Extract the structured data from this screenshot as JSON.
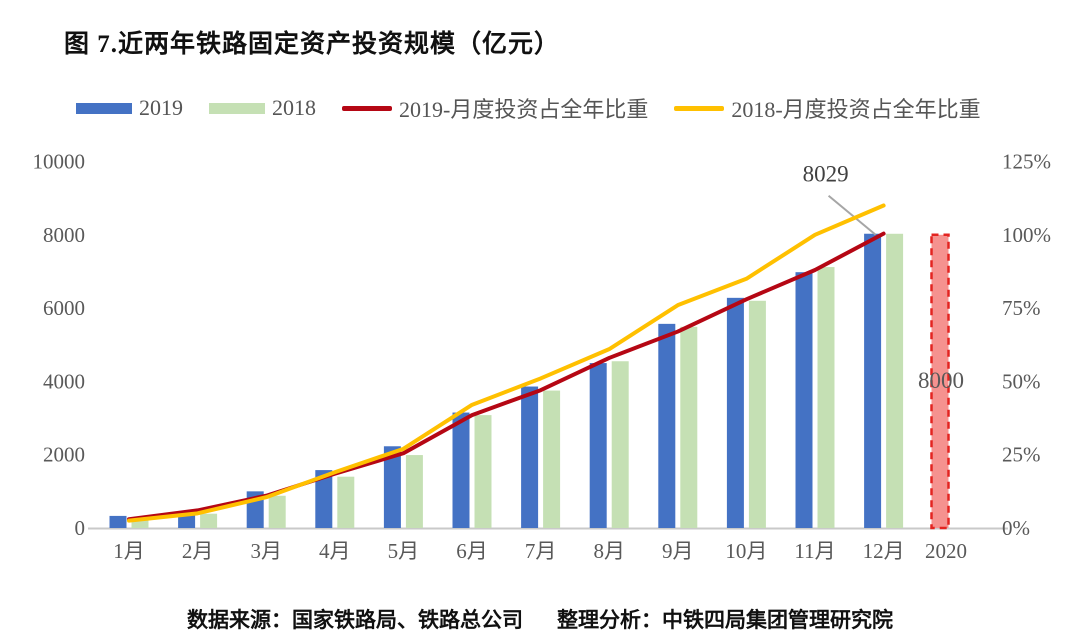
{
  "page": {
    "title": "图 7.近两年铁路固定资产投资规模（亿元）"
  },
  "legend": {
    "items": [
      {
        "label": "2019",
        "swatch": "bar",
        "color": "#4472C4"
      },
      {
        "label": "2018",
        "swatch": "bar",
        "color": "#C5E0B4"
      },
      {
        "label": "2019-月度投资占全年比重",
        "swatch": "line",
        "color": "#B50714"
      },
      {
        "label": "2018-月度投资占全年比重",
        "swatch": "line",
        "color": "#FFC000"
      }
    ]
  },
  "footer": {
    "source": "数据来源：国家铁路局、铁路总公司",
    "analysis": "整理分析：中铁四局集团管理研究院"
  },
  "chart_data": {
    "type": "bar",
    "subtype": "combo dual-axis bar+line",
    "title": "图 7.近两年铁路固定资产投资规模（亿元）",
    "categories": [
      "1月",
      "2月",
      "3月",
      "4月",
      "5月",
      "6月",
      "7月",
      "8月",
      "9月",
      "10月",
      "11月",
      "12月"
    ],
    "series": [
      {
        "name": "2019",
        "kind": "bar",
        "axis": "left",
        "color": "#4472C4",
        "values": [
          330,
          430,
          1000,
          1580,
          2230,
          3150,
          3860,
          4500,
          5570,
          6280,
          6980,
          8029
        ]
      },
      {
        "name": "2018",
        "kind": "bar",
        "axis": "left",
        "color": "#C5E0B4",
        "values": [
          230,
          390,
          880,
          1400,
          1990,
          3080,
          3750,
          4550,
          5490,
          6200,
          7120,
          8028
        ]
      },
      {
        "name": "2019-月度投资占全年比重",
        "kind": "line",
        "axis": "right",
        "color": "#B50714",
        "values_pct": [
          3,
          6,
          11,
          18.5,
          25.5,
          38.5,
          47,
          58,
          67,
          78,
          88,
          100.4
        ]
      },
      {
        "name": "2018-月度投资占全年比重",
        "kind": "line",
        "axis": "right",
        "color": "#FFC000",
        "values_pct": [
          2.5,
          5,
          10.5,
          19,
          27,
          42,
          51,
          61,
          76,
          85,
          100,
          110
        ]
      }
    ],
    "plan_bar": {
      "category": "2020",
      "value": 8000,
      "label": "8000",
      "fill": "#F5928F",
      "border": "#E32420"
    },
    "annotation": {
      "text": "8029",
      "target_series": "2019",
      "target_category": "12月"
    },
    "left_axis": {
      "range": [
        0,
        10000
      ],
      "ticks": [
        0,
        2000,
        4000,
        6000,
        8000,
        10000
      ]
    },
    "right_axis": {
      "range_pct": [
        0,
        125
      ],
      "ticks": [
        "0%",
        "25%",
        "50%",
        "75%",
        "100%",
        "125%"
      ]
    },
    "x_extra_label": "2020",
    "grid": false,
    "legend_position": "top"
  }
}
